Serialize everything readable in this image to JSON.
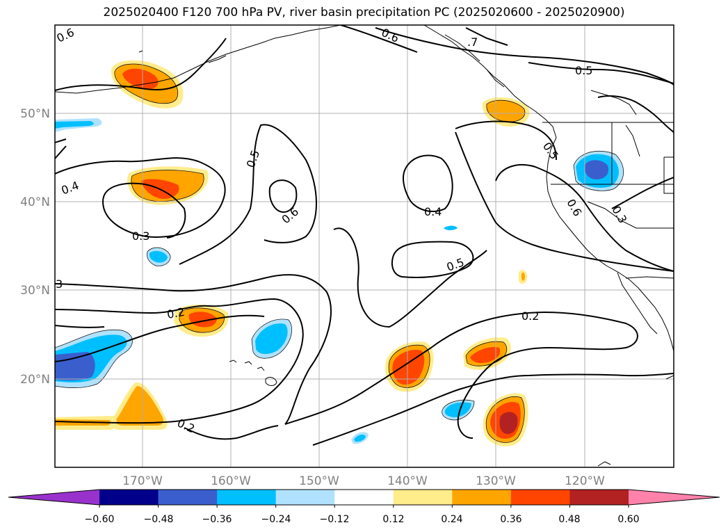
{
  "title": "2025020400 F120 700 hPa PV, river basin precipitation PC (2025020600 - 2025020900)",
  "latitude_labels": [
    "50°N",
    "40°N",
    "30°N",
    "20°N"
  ],
  "longitude_labels": [
    "170°W",
    "160°W",
    "150°W",
    "140°W",
    "130°W",
    "120°W"
  ],
  "contour_labels": [
    "0.6",
    "0.6",
    ".7",
    "0.5",
    "0.5",
    "0.5",
    "0.4",
    "0.6",
    "0.4",
    "0.3",
    "0.5",
    "0.6",
    "0.3",
    "3",
    "0.2",
    "0.2",
    "0.2"
  ],
  "colorbar": {
    "ticks": [
      "−0.60",
      "−0.48",
      "−0.36",
      "−0.24",
      "−0.12",
      "0.12",
      "0.24",
      "0.36",
      "0.48",
      "0.60"
    ],
    "colors": [
      "#9932cc",
      "#00008b",
      "#3a5fcd",
      "#00bfff",
      "#b0e2ff",
      "#ffffff",
      "#ffec8b",
      "#ffa500",
      "#ff4500",
      "#b22222",
      "#ff82ab"
    ]
  }
}
